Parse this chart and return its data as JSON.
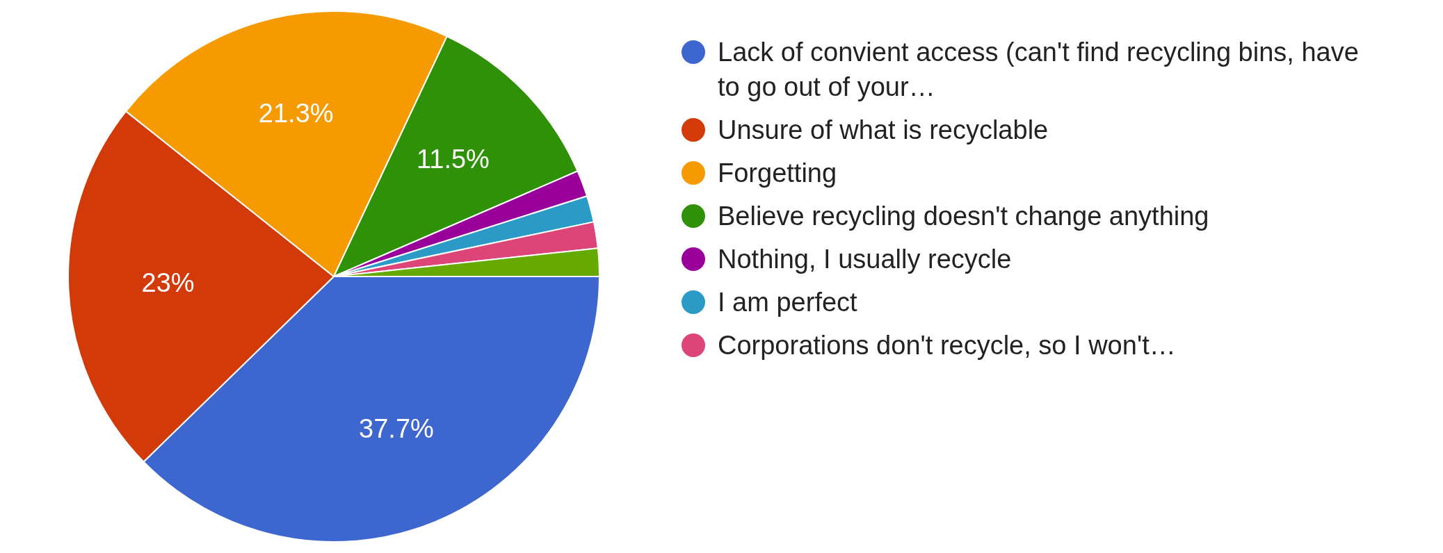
{
  "chart_data": {
    "type": "pie",
    "categories": [
      "Lack of convient access (can't find recycling bins, have to go out of your…",
      "Unsure of what is recyclable",
      "Forgetting",
      "Believe recycling doesn't change anything",
      "Nothing, I usually recycle",
      "I am perfect",
      "Corporations don't recycle, so I won't…",
      null
    ],
    "values": [
      37.7,
      23,
      21.3,
      11.5,
      1.6,
      1.6,
      1.6,
      1.7
    ],
    "colors": [
      "#3d67ce",
      "#d23a0a",
      "#f69a02",
      "#2f9108",
      "#990099",
      "#2c9ac7",
      "#dd4477",
      "#66aa00"
    ],
    "value_labels": [
      "37.7%",
      "23%",
      "21.3%",
      "11.5%",
      null,
      null,
      null,
      null
    ],
    "legend": "right"
  }
}
